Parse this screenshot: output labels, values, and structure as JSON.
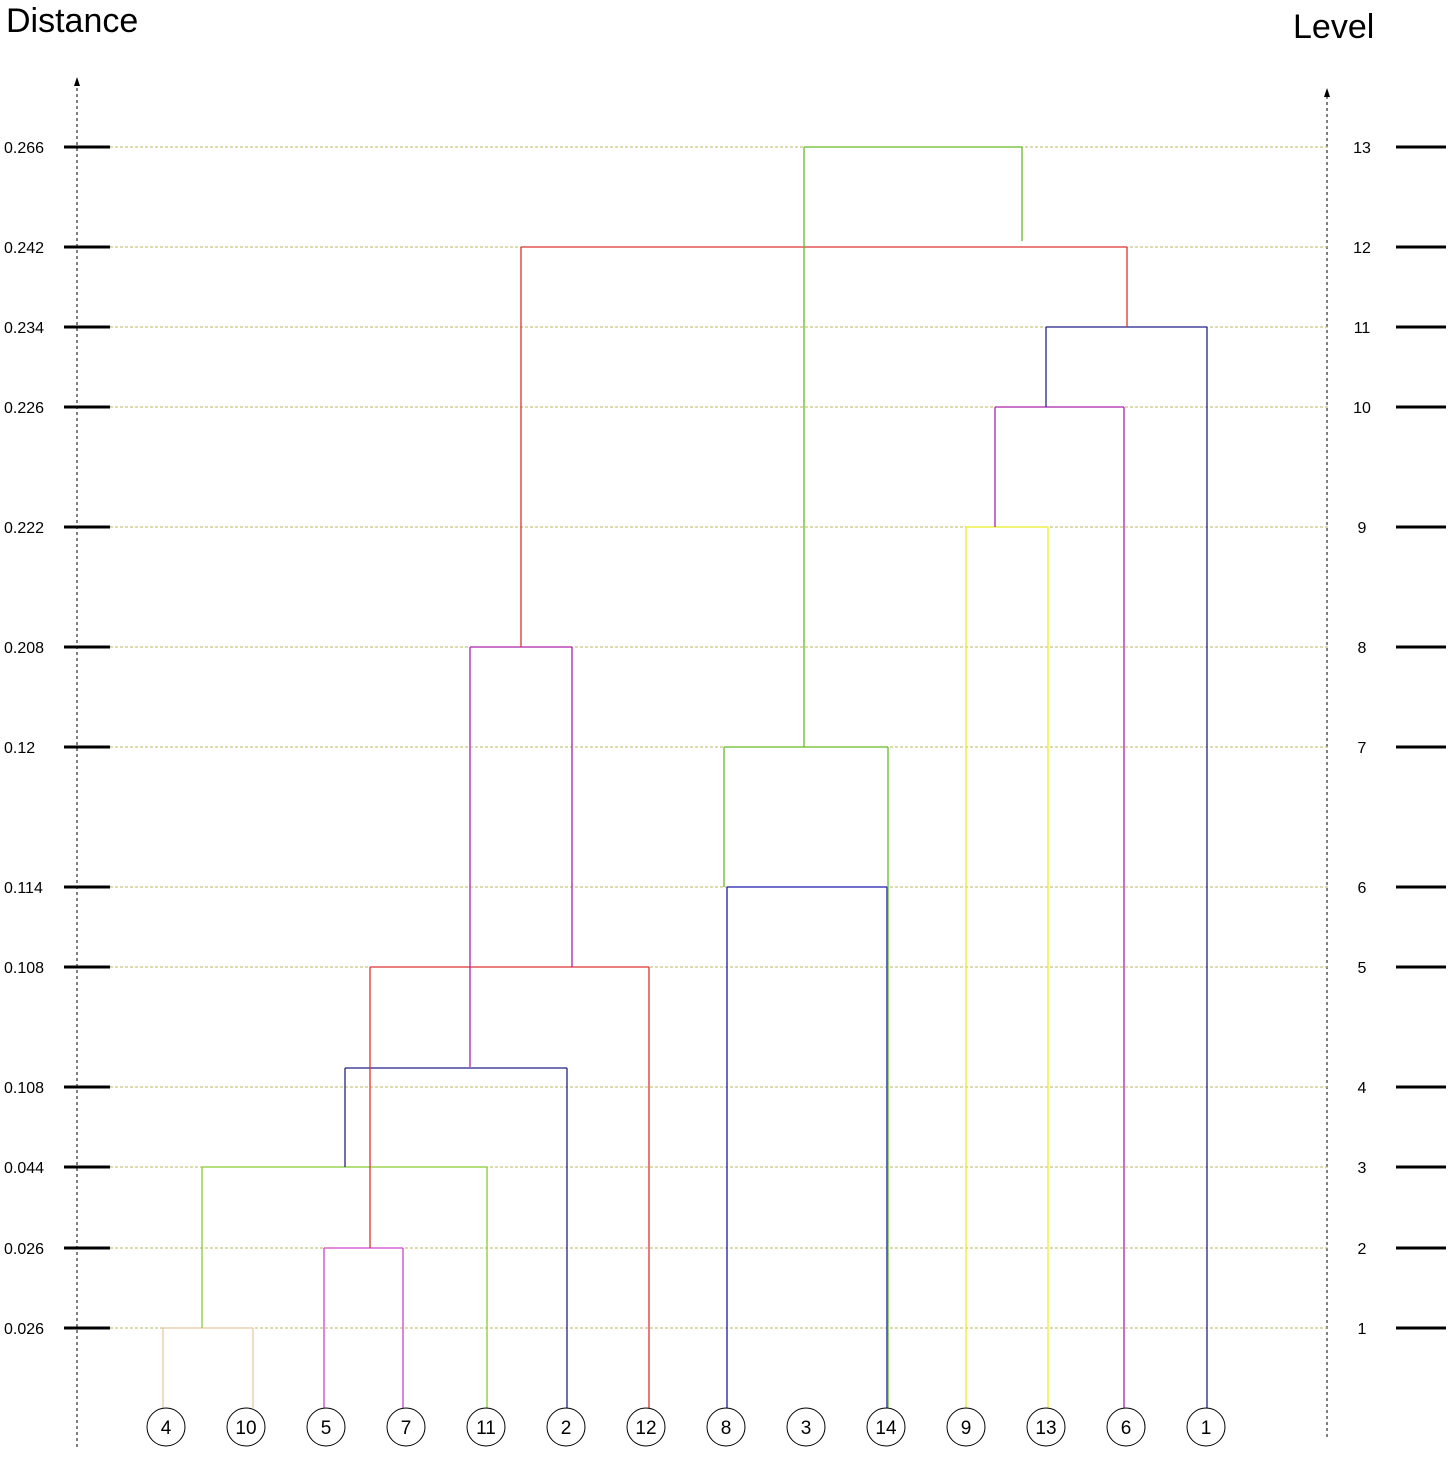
{
  "headers": {
    "left_axis_title": "Distance",
    "right_axis_title": "Level"
  },
  "axis_ticks": [
    {
      "distance": "0.026",
      "level": "1"
    },
    {
      "distance": "0.026",
      "level": "2"
    },
    {
      "distance": "0.044",
      "level": "3"
    },
    {
      "distance": "0.108",
      "level": "4"
    },
    {
      "distance": "0.108",
      "level": "5"
    },
    {
      "distance": "0.114",
      "level": "6"
    },
    {
      "distance": "0.12",
      "level": "7"
    },
    {
      "distance": "0.208",
      "level": "8"
    },
    {
      "distance": "0.222",
      "level": "9"
    },
    {
      "distance": "0.226",
      "level": "10"
    },
    {
      "distance": "0.234",
      "level": "11"
    },
    {
      "distance": "0.242",
      "level": "12"
    },
    {
      "distance": "0.266",
      "level": "13"
    }
  ],
  "leaves": [
    "4",
    "10",
    "5",
    "7",
    "11",
    "2",
    "12",
    "8",
    "3",
    "14",
    "9",
    "13",
    "6",
    "1"
  ],
  "merges": [
    {
      "level": 1,
      "left": "4",
      "right": "10",
      "color": "#e8c8a0"
    },
    {
      "level": 2,
      "left": "5",
      "right": "7",
      "color": "#cc44cc"
    },
    {
      "level": 3,
      "left": "4+10",
      "right": "11",
      "color": "#88cc33"
    },
    {
      "level": 4,
      "left": "4+10+11",
      "right": "2",
      "color": "#222288"
    },
    {
      "level": 5,
      "left": "5+7",
      "right": "12",
      "color": "#dd3333"
    },
    {
      "level": 6,
      "left": "8",
      "right": "14",
      "color": "#1a1aaa"
    },
    {
      "level": 7,
      "left": "8+14",
      "right": "3",
      "color": "#66bb22"
    },
    {
      "level": 8,
      "left": "4+10+11+2",
      "right": "5+7+12",
      "color": "#aa22aa"
    },
    {
      "level": 9,
      "left": "9",
      "right": "13",
      "color": "#eeee22"
    },
    {
      "level": 10,
      "left": "9+13",
      "right": "6",
      "color": "#aa22aa"
    },
    {
      "level": 11,
      "left": "9+13+6",
      "right": "1",
      "color": "#222288"
    },
    {
      "level": 12,
      "left": "4+10+11+2+5+7+12",
      "right": "9+13+6+1",
      "color": "#dd3333"
    },
    {
      "level": 13,
      "left": "8+14+3",
      "right": "rest",
      "color": "#66bb22"
    }
  ],
  "colors": {
    "gridline": "#b8b860",
    "axis": "#000000",
    "background": "#ffffff"
  }
}
